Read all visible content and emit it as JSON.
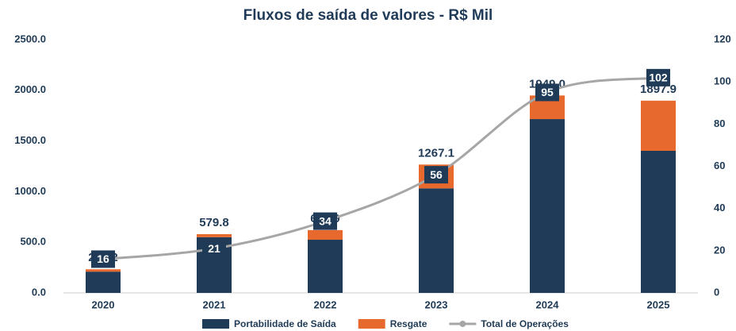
{
  "chart_data": {
    "type": "bar",
    "title": "Fluxos de saída de valores - R$ Mil",
    "categories": [
      "2020",
      "2021",
      "2022",
      "2023",
      "2024",
      "2025"
    ],
    "series": [
      {
        "name": "Portabilidade de Saída",
        "color": "#1f3b57",
        "type": "bar",
        "values": [
          210,
          549.8,
          524.9,
          1032.1,
          1716,
          1403
        ]
      },
      {
        "name": "Resgate",
        "color": "#e8692d",
        "type": "bar",
        "values": [
          23.2,
          30,
          95,
          235,
          233,
          494.9
        ]
      },
      {
        "name": "Total de Operações",
        "color": "#a6a6a6",
        "type": "line",
        "axis": "y2",
        "values": [
          16,
          21,
          34,
          56,
          95,
          102
        ]
      }
    ],
    "totals": [
      233.2,
      579.8,
      619.9,
      1267.1,
      1949.0,
      1897.9
    ],
    "total_labels": [
      "233.2",
      "579.8",
      "619.9",
      "1267.1",
      "1949.0",
      "1897.9"
    ],
    "ylim": [
      0,
      2500
    ],
    "yticks": [
      {
        "value": 0,
        "label": "0.0"
      },
      {
        "value": 500,
        "label": "500.0"
      },
      {
        "value": 1000,
        "label": "1000.0"
      },
      {
        "value": 1500,
        "label": "1500.0"
      },
      {
        "value": 2000,
        "label": "2000.0"
      },
      {
        "value": 2500,
        "label": "2500.0"
      }
    ],
    "y2lim": [
      0,
      120
    ],
    "y2ticks": [
      0,
      20,
      40,
      60,
      80,
      100,
      120
    ],
    "legend": "bottom"
  }
}
